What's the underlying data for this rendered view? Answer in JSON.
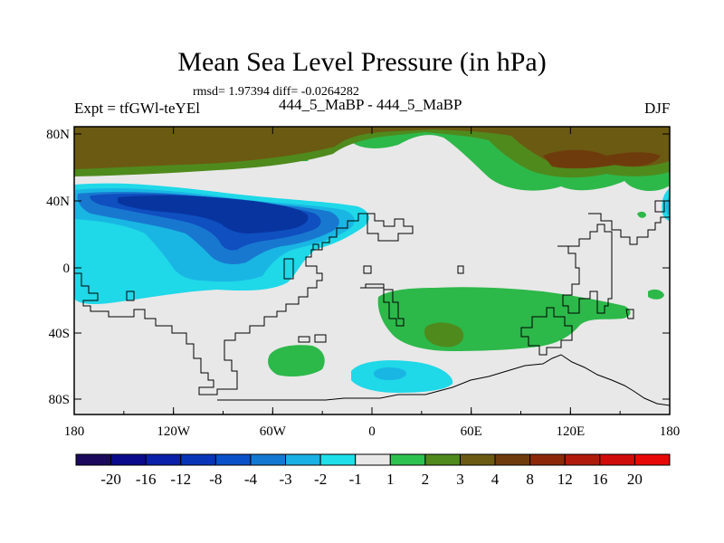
{
  "title": "Mean Sea Level Pressure (in hPa)",
  "stats": "rmsd= 1.97394 diff= -0.0264282",
  "left_label": "Expt = tfGWl-teYEl",
  "center_label": "444_5_MaBP - 444_5_MaBP",
  "right_label": "DJF",
  "colors": {
    "background": "#e8e8e8",
    "coast": "#000000",
    "bin_2_3": "#2db84a",
    "bin_3_4": "#4f8a1d",
    "bin_4_8": "#6b5a12",
    "bin_8_12": "#6e3c0c",
    "bin_m1_m2": "#1fd8e8",
    "bin_m2_m3": "#19b6e3",
    "bin_m3_m4": "#1878d0",
    "bin_m4_m8": "#0f4fc0",
    "bin_m8_m12": "#0834a0"
  },
  "map": {
    "x_ticks": [
      "180",
      "120W",
      "60W",
      "0",
      "60E",
      "120E",
      "180"
    ],
    "y_ticks": [
      "80N",
      "40N",
      "0",
      "40S",
      "80S"
    ]
  },
  "colorbar": {
    "labels": [
      "-20",
      "-16",
      "-12",
      "-8",
      "-4",
      "-3",
      "-2",
      "-1",
      "1",
      "2",
      "3",
      "4",
      "8",
      "12",
      "16",
      "20"
    ],
    "colors": [
      "#1a0a5a",
      "#0a0a8c",
      "#0a20a8",
      "#0834b8",
      "#0a50c8",
      "#1478d2",
      "#19b0e3",
      "#1fdfe8",
      "#e8e8e8",
      "#2dc24e",
      "#4f8a1d",
      "#6b5a12",
      "#6e3c0c",
      "#8c280a",
      "#b01a0a",
      "#d00c0a",
      "#e80808"
    ]
  }
}
